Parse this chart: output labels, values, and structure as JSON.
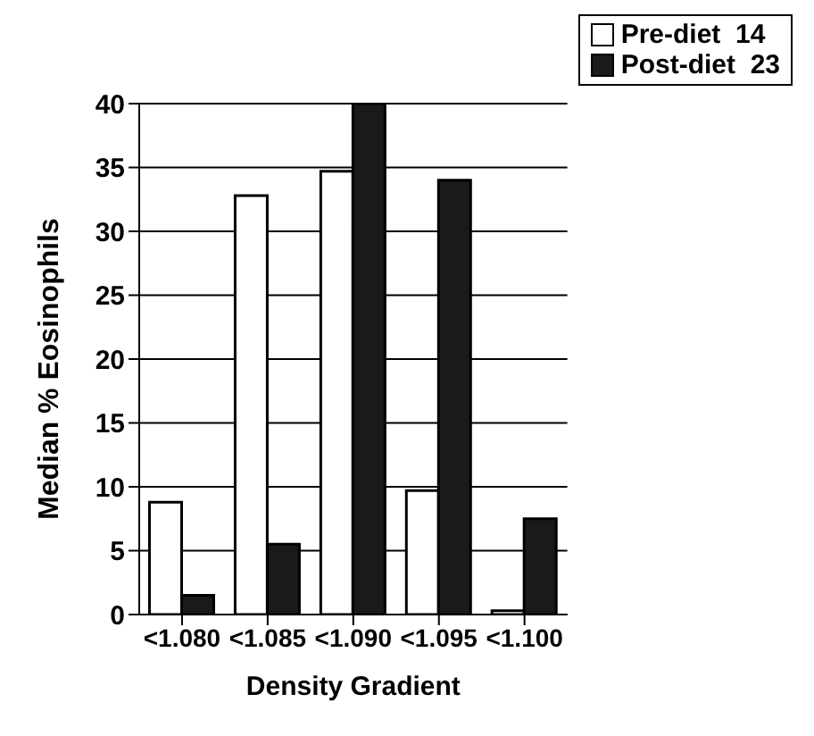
{
  "chart_data": {
    "type": "bar",
    "categories": [
      "<1.080",
      "<1.085",
      "<1.090",
      "<1.095",
      "<1.100"
    ],
    "series": [
      {
        "name": "Pre-diet  14",
        "color": "#ffffff",
        "values": [
          8.8,
          32.8,
          34.7,
          9.7,
          0.3
        ]
      },
      {
        "name": "Post-diet  23",
        "color": "#1a1a1a",
        "values": [
          1.5,
          5.5,
          40,
          34,
          7.5
        ]
      }
    ],
    "xlabel": "Density Gradient",
    "ylabel": "Median % Eosinophils",
    "ylim": [
      0,
      40
    ],
    "yticks": [
      0,
      5,
      10,
      15,
      20,
      25,
      30,
      35,
      40
    ],
    "grid": "y",
    "legend": "top right"
  }
}
